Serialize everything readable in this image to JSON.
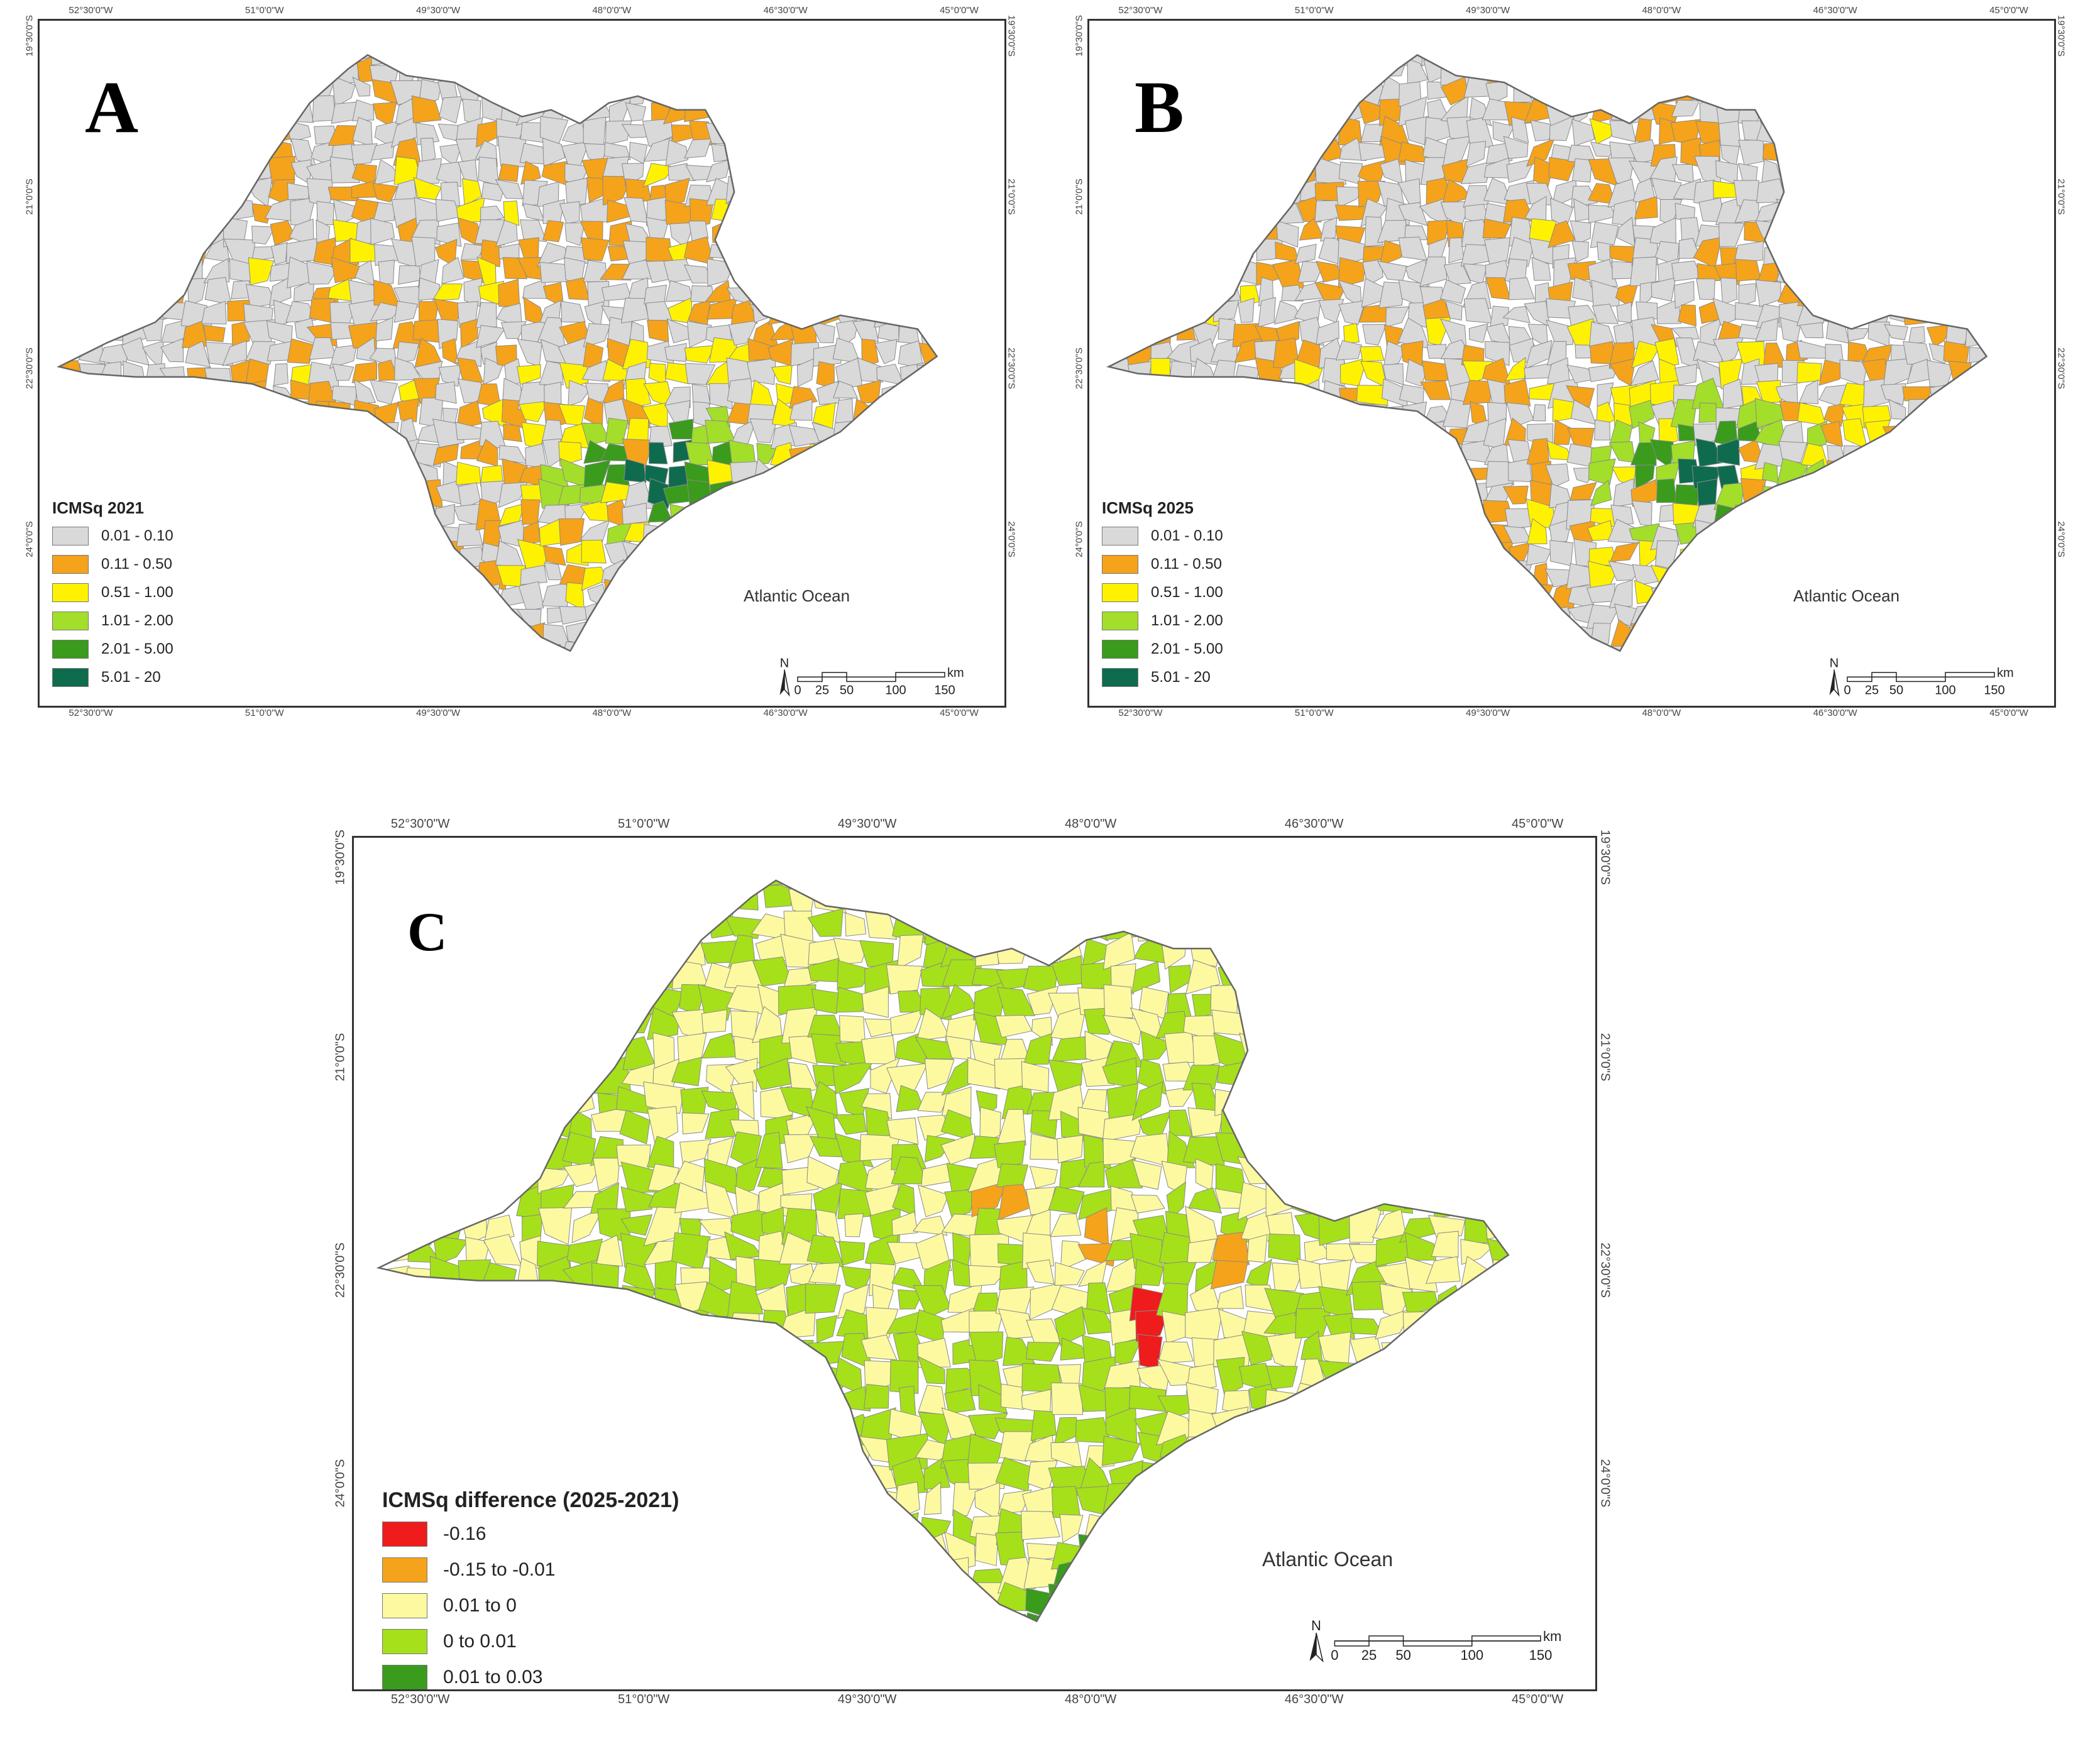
{
  "colors": {
    "border": "#7a7a7a",
    "frame": "#333333"
  },
  "panels": {
    "A": {
      "letter": "A",
      "legend_title": "ICMSq 2021",
      "legend": [
        {
          "label": "0.01 - 0.10",
          "color": "#d9d9d9"
        },
        {
          "label": "0.11 - 0.50",
          "color": "#f5a31a"
        },
        {
          "label": "0.51 - 1.00",
          "color": "#fff200"
        },
        {
          "label": "1.01 - 2.00",
          "color": "#a3de2a"
        },
        {
          "label": "2.01 - 5.00",
          "color": "#3a9b1c"
        },
        {
          "label": "5.01 - 20",
          "color": "#0f6b4e"
        }
      ],
      "ocean_label": "Atlantic Ocean",
      "lon_ticks": [
        "52°30'0\"W",
        "51°0'0\"W",
        "49°30'0\"W",
        "48°0'0\"W",
        "46°30'0\"W",
        "45°0'0\"W"
      ],
      "lat_ticks": [
        "19°30'0\"S",
        "21°0'0\"S",
        "22°30'0\"S",
        "24°0'0\"S"
      ],
      "scale": {
        "north": "N",
        "labels": [
          "0",
          "25",
          "50",
          "100",
          "150"
        ],
        "unit": "km"
      }
    },
    "B": {
      "letter": "B",
      "legend_title": "ICMSq 2025",
      "legend": [
        {
          "label": "0.01 - 0.10",
          "color": "#d9d9d9"
        },
        {
          "label": "0.11 - 0.50",
          "color": "#f5a31a"
        },
        {
          "label": "0.51 - 1.00",
          "color": "#fff200"
        },
        {
          "label": "1.01 - 2.00",
          "color": "#a3de2a"
        },
        {
          "label": "2.01 - 5.00",
          "color": "#3a9b1c"
        },
        {
          "label": "5.01 - 20",
          "color": "#0f6b4e"
        }
      ],
      "ocean_label": "Atlantic Ocean",
      "lon_ticks": [
        "52°30'0\"W",
        "51°0'0\"W",
        "49°30'0\"W",
        "48°0'0\"W",
        "46°30'0\"W",
        "45°0'0\"W"
      ],
      "lat_ticks": [
        "19°30'0\"S",
        "21°0'0\"S",
        "22°30'0\"S",
        "24°0'0\"S"
      ],
      "scale": {
        "north": "N",
        "labels": [
          "0",
          "25",
          "50",
          "100",
          "150"
        ],
        "unit": "km"
      }
    },
    "C": {
      "letter": "C",
      "legend_title": "ICMSq difference (2025-2021)",
      "legend": [
        {
          "label": "-0.16",
          "color": "#ee1c1c"
        },
        {
          "label": "-0.15 to -0.01",
          "color": "#f5a31a"
        },
        {
          "label": "0.01 to 0",
          "color": "#fdf9a0"
        },
        {
          "label": "0 to 0.01",
          "color": "#a6e01a"
        },
        {
          "label": "0.01 to 0.03",
          "color": "#3a9b1c"
        }
      ],
      "ocean_label": "Atlantic Ocean",
      "lon_ticks": [
        "52°30'0\"W",
        "51°0'0\"W",
        "49°30'0\"W",
        "48°0'0\"W",
        "46°30'0\"W",
        "45°0'0\"W"
      ],
      "lat_ticks": [
        "19°30'0\"S",
        "21°0'0\"S",
        "22°30'0\"S",
        "24°0'0\"S"
      ],
      "scale": {
        "north": "N",
        "labels": [
          "0",
          "25",
          "50",
          "100",
          "150"
        ],
        "unit": "km"
      }
    }
  }
}
